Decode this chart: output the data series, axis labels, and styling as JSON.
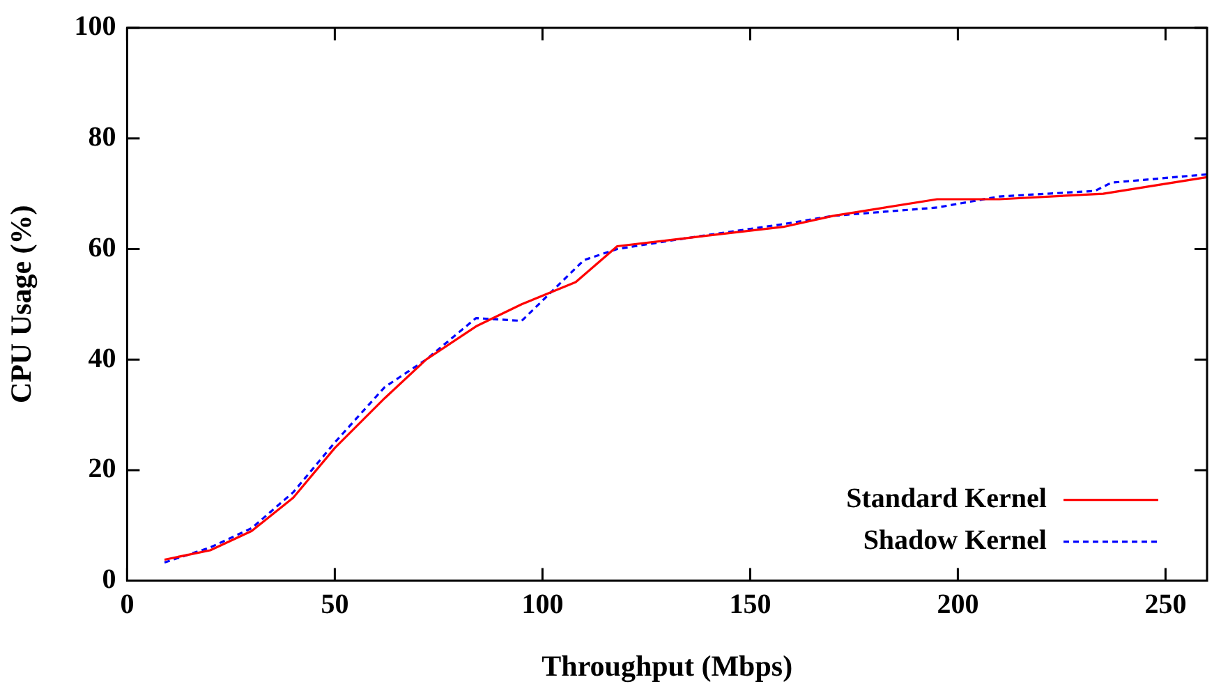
{
  "chart_data": {
    "type": "line",
    "xlabel": "Throughput (Mbps)",
    "ylabel": "CPU Usage (%)",
    "xlim": [
      0,
      260
    ],
    "xticks": [
      0,
      50,
      100,
      150,
      200,
      250
    ],
    "ylim": [
      0,
      100
    ],
    "yticks": [
      0,
      20,
      40,
      60,
      80,
      100
    ],
    "grid": false,
    "legend": "bottom right",
    "marker": "none",
    "series": [
      {
        "name": "Standard Kernel",
        "color": "#ff0000",
        "line_style": "solid",
        "x": [
          9,
          20,
          30,
          40,
          50,
          62,
          72,
          84,
          95,
          108,
          118,
          135,
          158,
          170,
          195,
          210,
          235,
          260
        ],
        "values": [
          3.8,
          5.5,
          9,
          15,
          24,
          33,
          40,
          46,
          50,
          54,
          60.5,
          62,
          64,
          66,
          69,
          69,
          70,
          73
        ]
      },
      {
        "name": "Shadow Kernel",
        "color": "#0000ff",
        "line_style": "dashed",
        "x": [
          9,
          20,
          30,
          40,
          50,
          62,
          72,
          84,
          95,
          110,
          118,
          135,
          158,
          170,
          195,
          210,
          233,
          237,
          260
        ],
        "values": [
          3.3,
          6,
          9.5,
          16,
          25,
          35,
          40,
          47.5,
          47,
          58,
          60,
          62,
          64.5,
          66,
          67.5,
          69.5,
          70.5,
          72,
          73.5
        ]
      }
    ]
  }
}
